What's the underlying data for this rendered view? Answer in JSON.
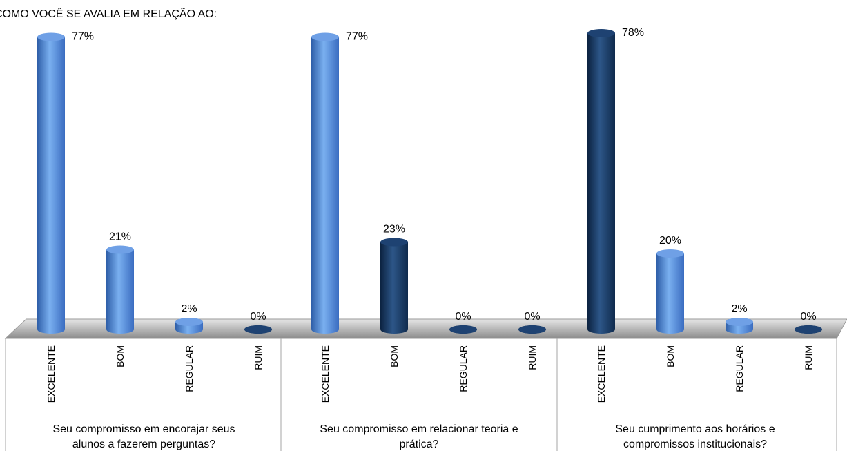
{
  "chart_data": {
    "type": "bar",
    "title": "COMO VOCÊ  SE AVALIA EM RELAÇÃO AO:",
    "ylim": [
      0,
      80
    ],
    "grid": false,
    "legend": "none",
    "colors": {
      "light": "#4a7fd2",
      "dark": "#16365f"
    },
    "groups": [
      {
        "label_lines": [
          "Seu compromisso em encorajar seus",
          "alunos a fazerem perguntas?"
        ],
        "categories": [
          "EXCELENTE",
          "BOM",
          "REGULAR",
          "RUIM"
        ],
        "values": [
          77,
          21,
          2,
          0
        ],
        "labels": [
          "77%",
          "21%",
          "2%",
          "0%"
        ],
        "shades": [
          "light",
          "light",
          "light",
          "dark"
        ]
      },
      {
        "label_lines": [
          "Seu compromisso em relacionar teoria e",
          "prática?"
        ],
        "categories": [
          "EXCELENTE",
          "BOM",
          "REGULAR",
          "RUIM"
        ],
        "values": [
          77,
          23,
          0,
          0
        ],
        "labels": [
          "77%",
          "23%",
          "0%",
          "0%"
        ],
        "shades": [
          "light",
          "dark",
          "dark",
          "dark"
        ]
      },
      {
        "label_lines": [
          "Seu cumprimento aos horários e",
          "compromissos institucionais?"
        ],
        "categories": [
          "EXCELENTE",
          "BOM",
          "REGULAR",
          "RUIM"
        ],
        "values": [
          78,
          20,
          2,
          0
        ],
        "labels": [
          "78%",
          "20%",
          "2%",
          "0%"
        ],
        "shades": [
          "dark",
          "light",
          "light",
          "dark"
        ]
      }
    ]
  }
}
